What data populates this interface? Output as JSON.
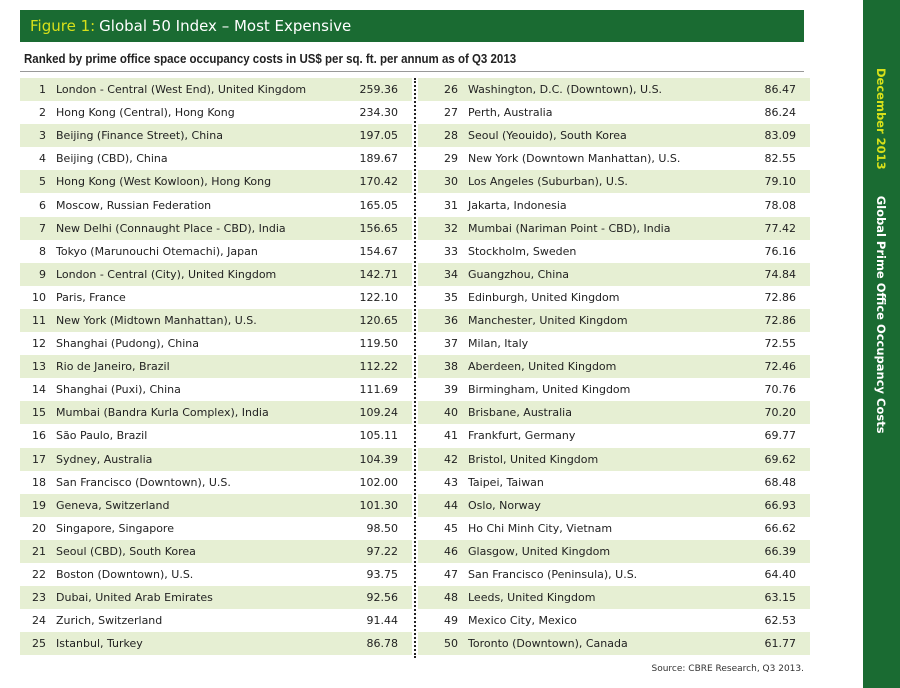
{
  "header": {
    "figure_label": "Figure 1:",
    "title": "Global 50 Index – Most Expensive"
  },
  "subtitle": "Ranked by prime office space occupancy costs in US$ per sq. ft. per annum as of Q3 2013",
  "rows_left": [
    {
      "rank": "1",
      "city": "London - Central (West End), United Kingdom",
      "value": "259.36"
    },
    {
      "rank": "2",
      "city": "Hong Kong (Central), Hong Kong",
      "value": "234.30"
    },
    {
      "rank": "3",
      "city": "Beijing (Finance Street), China",
      "value": "197.05"
    },
    {
      "rank": "4",
      "city": "Beijing (CBD), China",
      "value": "189.67"
    },
    {
      "rank": "5",
      "city": "Hong Kong (West Kowloon), Hong Kong",
      "value": "170.42"
    },
    {
      "rank": "6",
      "city": "Moscow, Russian Federation",
      "value": "165.05"
    },
    {
      "rank": "7",
      "city": "New Delhi (Connaught Place - CBD), India",
      "value": "156.65"
    },
    {
      "rank": "8",
      "city": "Tokyo (Marunouchi Otemachi), Japan",
      "value": "154.67"
    },
    {
      "rank": "9",
      "city": "London - Central (City), United Kingdom",
      "value": "142.71"
    },
    {
      "rank": "10",
      "city": "Paris, France",
      "value": "122.10"
    },
    {
      "rank": "11",
      "city": "New York (Midtown Manhattan), U.S.",
      "value": "120.65"
    },
    {
      "rank": "12",
      "city": "Shanghai (Pudong), China",
      "value": "119.50"
    },
    {
      "rank": "13",
      "city": "Rio de Janeiro, Brazil",
      "value": "112.22"
    },
    {
      "rank": "14",
      "city": "Shanghai (Puxi), China",
      "value": "111.69"
    },
    {
      "rank": "15",
      "city": "Mumbai (Bandra Kurla Complex), India",
      "value": "109.24"
    },
    {
      "rank": "16",
      "city": "São Paulo, Brazil",
      "value": "105.11"
    },
    {
      "rank": "17",
      "city": "Sydney, Australia",
      "value": "104.39"
    },
    {
      "rank": "18",
      "city": "San Francisco (Downtown), U.S.",
      "value": "102.00"
    },
    {
      "rank": "19",
      "city": "Geneva, Switzerland",
      "value": "101.30"
    },
    {
      "rank": "20",
      "city": "Singapore, Singapore",
      "value": "98.50"
    },
    {
      "rank": "21",
      "city": "Seoul (CBD), South Korea",
      "value": "97.22"
    },
    {
      "rank": "22",
      "city": "Boston (Downtown), U.S.",
      "value": "93.75"
    },
    {
      "rank": "23",
      "city": "Dubai, United Arab Emirates",
      "value": "92.56"
    },
    {
      "rank": "24",
      "city": "Zurich, Switzerland",
      "value": "91.44"
    },
    {
      "rank": "25",
      "city": "Istanbul, Turkey",
      "value": "86.78"
    }
  ],
  "rows_right": [
    {
      "rank": "26",
      "city": "Washington, D.C. (Downtown), U.S.",
      "value": "86.47"
    },
    {
      "rank": "27",
      "city": "Perth, Australia",
      "value": "86.24"
    },
    {
      "rank": "28",
      "city": "Seoul (Yeouido), South Korea",
      "value": "83.09"
    },
    {
      "rank": "29",
      "city": "New York (Downtown Manhattan), U.S.",
      "value": "82.55"
    },
    {
      "rank": "30",
      "city": "Los Angeles (Suburban), U.S.",
      "value": "79.10"
    },
    {
      "rank": "31",
      "city": "Jakarta, Indonesia",
      "value": "78.08"
    },
    {
      "rank": "32",
      "city": "Mumbai (Nariman Point - CBD), India",
      "value": "77.42"
    },
    {
      "rank": "33",
      "city": "Stockholm, Sweden",
      "value": "76.16"
    },
    {
      "rank": "34",
      "city": "Guangzhou, China",
      "value": "74.84"
    },
    {
      "rank": "35",
      "city": "Edinburgh, United Kingdom",
      "value": "72.86"
    },
    {
      "rank": "36",
      "city": "Manchester, United Kingdom",
      "value": "72.86"
    },
    {
      "rank": "37",
      "city": "Milan, Italy",
      "value": "72.55"
    },
    {
      "rank": "38",
      "city": "Aberdeen, United Kingdom",
      "value": "72.46"
    },
    {
      "rank": "39",
      "city": "Birmingham, United Kingdom",
      "value": "70.76"
    },
    {
      "rank": "40",
      "city": "Brisbane, Australia",
      "value": "70.20"
    },
    {
      "rank": "41",
      "city": "Frankfurt, Germany",
      "value": "69.77"
    },
    {
      "rank": "42",
      "city": "Bristol, United Kingdom",
      "value": "69.62"
    },
    {
      "rank": "43",
      "city": "Taipei, Taiwan",
      "value": "68.48"
    },
    {
      "rank": "44",
      "city": "Oslo, Norway",
      "value": "66.93"
    },
    {
      "rank": "45",
      "city": "Ho Chi Minh City, Vietnam",
      "value": "66.62"
    },
    {
      "rank": "46",
      "city": "Glasgow, United Kingdom",
      "value": "66.39"
    },
    {
      "rank": "47",
      "city": "San Francisco (Peninsula), U.S.",
      "value": "64.40"
    },
    {
      "rank": "48",
      "city": "Leeds, United Kingdom",
      "value": "63.15"
    },
    {
      "rank": "49",
      "city": "Mexico City, Mexico",
      "value": "62.53"
    },
    {
      "rank": "50",
      "city": "Toronto (Downtown), Canada",
      "value": "61.77"
    }
  ],
  "source": "Source: CBRE Research, Q3 2013.",
  "side": {
    "date": "December 2013",
    "report_title": "Global Prime Office Occupancy Costs"
  },
  "colors": {
    "brand_green": "#1a6b32",
    "accent_yellow": "#d7e01a",
    "row_shade": "#e6efd3"
  }
}
